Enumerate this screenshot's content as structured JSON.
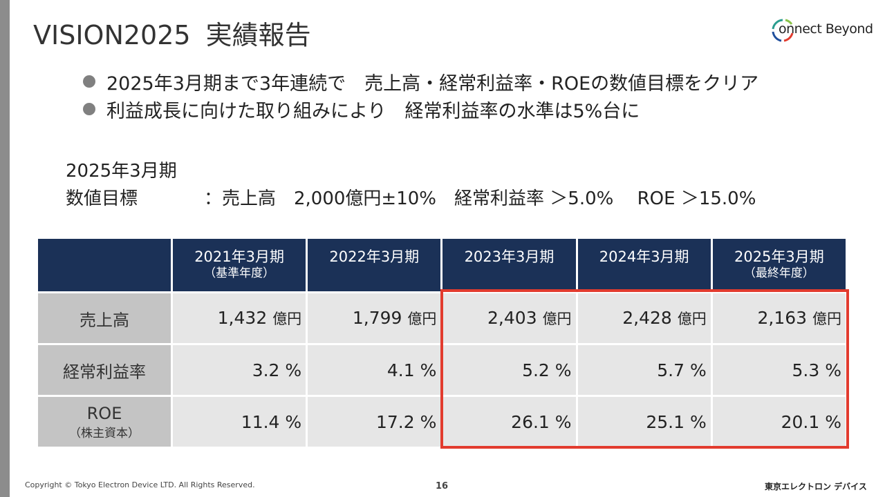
{
  "slide": {
    "title_part1": "VISION2025",
    "title_part2": "実績報告",
    "logo_text": "onnect Beyond"
  },
  "bullets": [
    "2025年3月期まで3年連続で　売上高・経常利益率・ROEの数値目標をクリア",
    "利益成長に向けた取り組みにより　経常利益率の水準は5%台に"
  ],
  "target": {
    "period": "2025年3月期",
    "label": "数値目標",
    "text": "：売上高　2,000億円±10%　経常利益率 ＞5.0%　 ROE ＞15.0%"
  },
  "table": {
    "headers": [
      {
        "main": "2021年3月期",
        "sub": "（基準年度）"
      },
      {
        "main": "2022年3月期",
        "sub": ""
      },
      {
        "main": "2023年3月期",
        "sub": ""
      },
      {
        "main": "2024年3月期",
        "sub": ""
      },
      {
        "main": "2025年3月期",
        "sub": "（最終年度）"
      }
    ],
    "rows": [
      {
        "label": "売上高",
        "sub": "",
        "values": [
          "1,432",
          "1,799",
          "2,403",
          "2,428",
          "2,163"
        ],
        "unit": "億円"
      },
      {
        "label": "経常利益率",
        "sub": "",
        "values": [
          "3.2",
          "4.1",
          "5.2",
          "5.7",
          "5.3"
        ],
        "unit": "%"
      },
      {
        "label": "ROE",
        "sub": "（株主資本）",
        "values": [
          "11.4",
          "17.2",
          "26.1",
          "25.1",
          "20.1"
        ],
        "unit": "%"
      }
    ]
  },
  "colors": {
    "header_bg": "#1b3157",
    "highlight_border": "#e23b2e",
    "row_header_bg": "#c4c4c4",
    "cell_bg": "#e6e6e6"
  },
  "footer": {
    "copyright": "Copyright © Tokyo Electron Device LTD. All Rights Reserved.",
    "page": "16",
    "brand": "東京エレクトロン デバイス"
  }
}
